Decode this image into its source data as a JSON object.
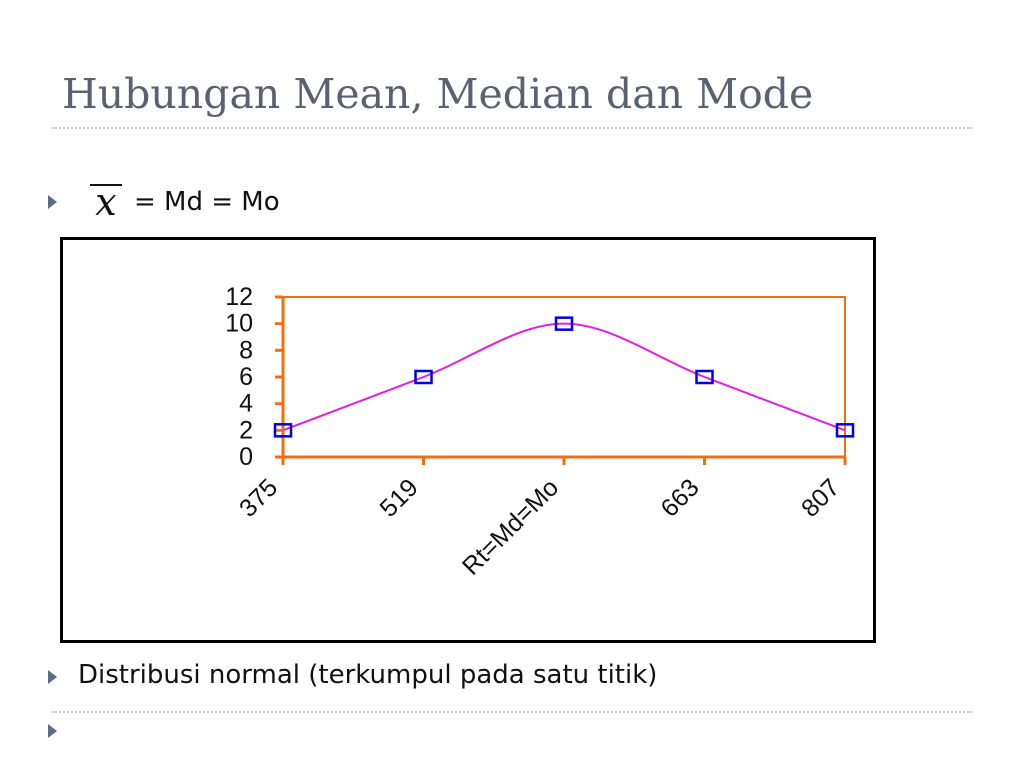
{
  "title": "Hubungan Mean, Median dan Mode",
  "bullet1": {
    "formula_rest": "= Md = Mo"
  },
  "bullet2": {
    "text": "Distribusi normal (terkumpul pada satu titik)"
  },
  "colors": {
    "title": "#5a6272",
    "axis": "#f07010",
    "curve": "#e020e0",
    "marker": "#0000dd",
    "bullet": "#5b6c85"
  },
  "chart_data": {
    "type": "line",
    "categories": [
      "375",
      "519",
      "Rt=Md=Mo",
      "663",
      "807"
    ],
    "values": [
      2,
      6,
      10,
      6,
      2
    ],
    "smoothed": true,
    "markers": "open-square",
    "ylim": [
      0,
      12
    ],
    "yticks": [
      "0",
      "2",
      "4",
      "6",
      "8",
      "10",
      "12"
    ],
    "grid": false,
    "legend": "none",
    "xlabel": "",
    "ylabel": ""
  }
}
